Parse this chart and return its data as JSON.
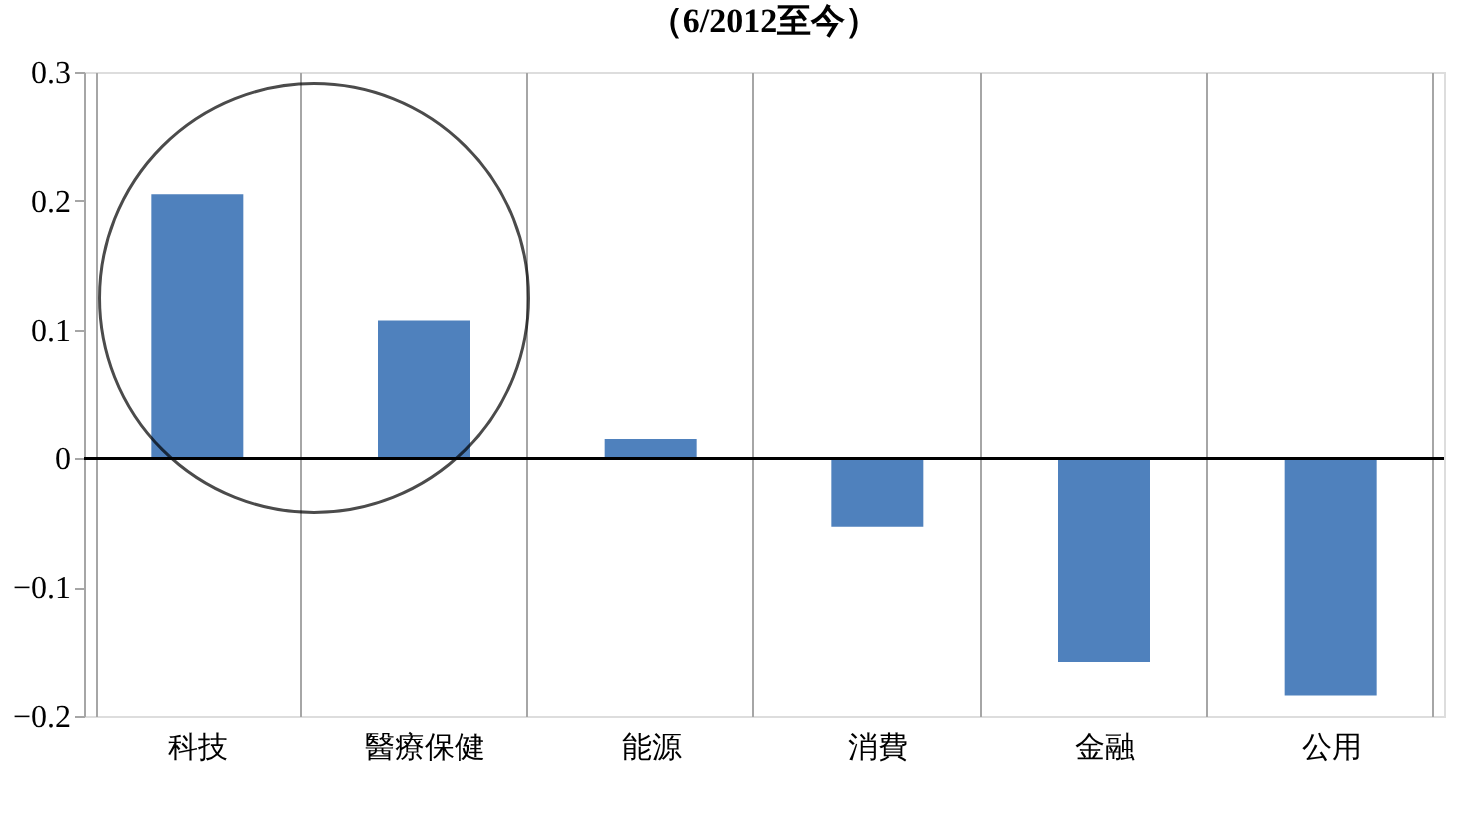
{
  "chart_data": {
    "type": "bar",
    "title": "（6/2012至今）",
    "categories": [
      "科技",
      "醫療保健",
      "能源",
      "消費",
      "金融",
      "公用"
    ],
    "series": [
      {
        "color": "#4f81bd",
        "values": [
          0.205,
          0.107,
          0.015,
          -0.053,
          -0.158,
          -0.184
        ]
      }
    ],
    "ylim": [
      -0.2,
      0.3
    ],
    "yticks": [
      -0.2,
      -0.1,
      0,
      0.1,
      0.2,
      0.3
    ],
    "grid": "x",
    "legend": false,
    "ref_lines": [
      {
        "axis": "y",
        "value": 0,
        "color": "#000000"
      }
    ]
  }
}
